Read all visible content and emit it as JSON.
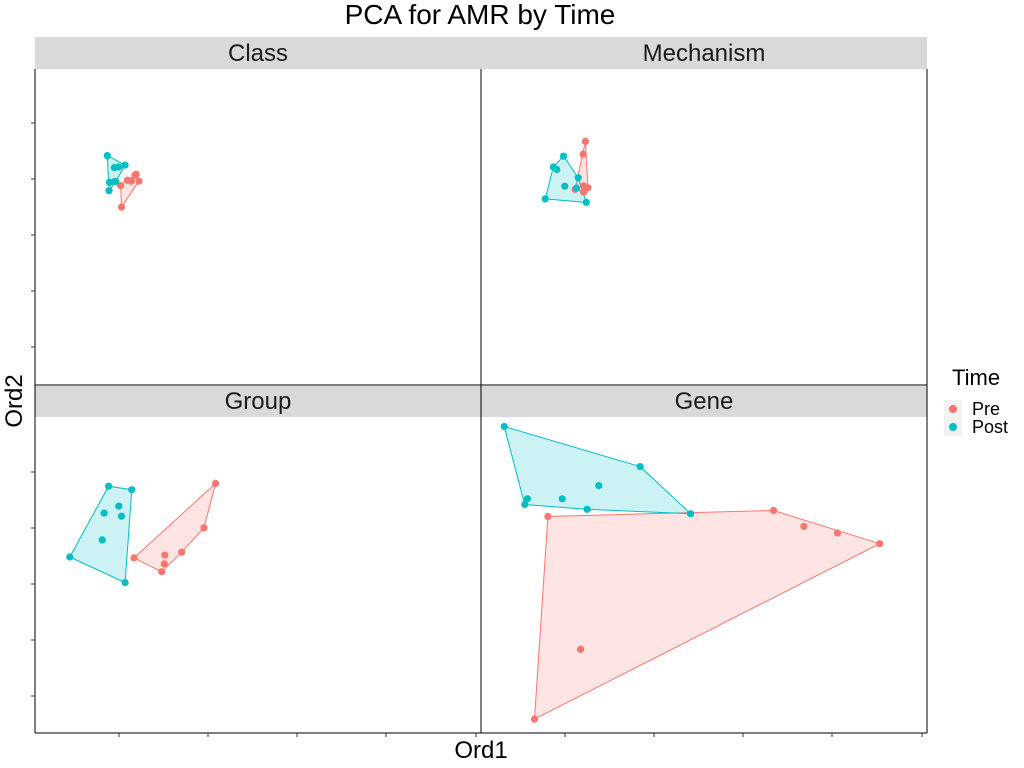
{
  "title": "PCA for AMR by Time",
  "colors": {
    "Pre": "#F8766D",
    "Post": "#00BFC4"
  },
  "chart_data": {
    "type": "scatter",
    "title": "PCA for AMR by Time",
    "xlabel": "Ord1",
    "ylabel": "Ord2",
    "legend": {
      "title": "Time",
      "position": "right",
      "entries": [
        "Pre",
        "Post"
      ]
    },
    "grid": false,
    "xlim": [
      0,
      100
    ],
    "ylim": [
      0,
      100
    ],
    "facets": [
      {
        "label": "Class",
        "series": [
          {
            "name": "Pre",
            "hull": true,
            "points": [
              [
                19.4,
                56.3
              ],
              [
                19.2,
                63.1
              ],
              [
                20.7,
                64.8
              ],
              [
                21.6,
                64.5
              ],
              [
                22.4,
                66.4
              ],
              [
                22.7,
                66.7
              ],
              [
                23.3,
                64.5
              ]
            ]
          },
          {
            "name": "Post",
            "hull": true,
            "points": [
              [
                16.2,
                72.6
              ],
              [
                18.8,
                69.0
              ],
              [
                17.8,
                68.8
              ],
              [
                18.1,
                64.4
              ],
              [
                16.7,
                64.1
              ],
              [
                16.6,
                61.5
              ],
              [
                17.9,
                64.4
              ],
              [
                20.2,
                69.6
              ]
            ]
          }
        ]
      },
      {
        "label": "Mechanism",
        "series": [
          {
            "name": "Pre",
            "hull": true,
            "points": [
              [
                23.4,
                77.1
              ],
              [
                22.9,
                73.0
              ],
              [
                21.1,
                61.9
              ],
              [
                23.0,
                63.0
              ],
              [
                23.0,
                61.0
              ],
              [
                24.0,
                62.4
              ]
            ]
          },
          {
            "name": "Post",
            "hull": true,
            "points": [
              [
                14.4,
                58.9
              ],
              [
                16.2,
                69.0
              ],
              [
                17.0,
                68.2
              ],
              [
                18.5,
                72.4
              ],
              [
                18.8,
                62.9
              ],
              [
                21.4,
                62.3
              ],
              [
                21.8,
                65.6
              ],
              [
                23.6,
                57.8
              ]
            ]
          }
        ]
      },
      {
        "label": "Group",
        "series": [
          {
            "name": "Pre",
            "hull": true,
            "points": [
              [
                40.5,
                79.0
              ],
              [
                37.9,
                64.9
              ],
              [
                32.9,
                57.2
              ],
              [
                29.0,
                53.5
              ],
              [
                29.1,
                56.3
              ],
              [
                28.4,
                51.0
              ],
              [
                22.2,
                55.4
              ]
            ]
          },
          {
            "name": "Post",
            "hull": true,
            "points": [
              [
                7.8,
                55.7
              ],
              [
                15.1,
                61.1
              ],
              [
                15.5,
                69.6
              ],
              [
                19.4,
                68.6
              ],
              [
                16.5,
                78.1
              ],
              [
                18.8,
                71.8
              ],
              [
                21.7,
                77.0
              ],
              [
                20.2,
                47.6
              ]
            ]
          }
        ]
      },
      {
        "label": "Gene",
        "series": [
          {
            "name": "Pre",
            "hull": true,
            "points": [
              [
                22.3,
                26.5
              ],
              [
                15.0,
                68.5
              ],
              [
                65.6,
                70.4
              ],
              [
                72.4,
                65.4
              ],
              [
                79.9,
                63.3
              ],
              [
                89.4,
                59.9
              ],
              [
                12.0,
                4.4
              ]
            ]
          },
          {
            "name": "Post",
            "hull": true,
            "points": [
              [
                5.2,
                97.0
              ],
              [
                9.8,
                72.3
              ],
              [
                10.4,
                74.1
              ],
              [
                18.2,
                74.1
              ],
              [
                26.4,
                78.3
              ],
              [
                35.7,
                84.3
              ],
              [
                47.0,
                69.4
              ],
              [
                23.8,
                70.8
              ]
            ]
          }
        ]
      }
    ]
  }
}
